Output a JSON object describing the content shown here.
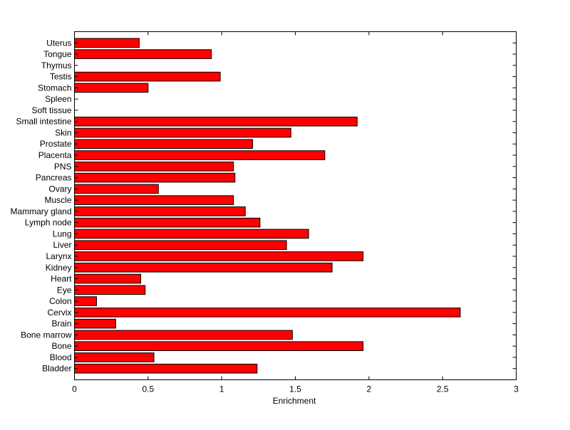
{
  "chart_data": {
    "type": "bar",
    "orientation": "horizontal",
    "title": "",
    "xlabel": "Enrichment",
    "ylabel": "",
    "xlim": [
      0,
      3
    ],
    "xticks": [
      0,
      0.5,
      1,
      1.5,
      2,
      2.5,
      3
    ],
    "xtick_labels": [
      "0",
      "0.5",
      "1",
      "1.5",
      "2",
      "2.5",
      "3"
    ],
    "grid": false,
    "bar_color": "#ff0000",
    "categories": [
      "Bladder",
      "Blood",
      "Bone",
      "Bone marrow",
      "Brain",
      "Cervix",
      "Colon",
      "Eye",
      "Heart",
      "Kidney",
      "Larynx",
      "Liver",
      "Lung",
      "Lymph node",
      "Mammary gland",
      "Muscle",
      "Ovary",
      "Pancreas",
      "PNS",
      "Placenta",
      "Prostate",
      "Skin",
      "Small intestine",
      "Soft tissue",
      "Spleen",
      "Stomach",
      "Testis",
      "Thymus",
      "Tongue",
      "Uterus"
    ],
    "values": [
      1.24,
      0.54,
      1.96,
      1.48,
      0.28,
      2.62,
      0.15,
      0.48,
      0.45,
      1.75,
      1.96,
      1.44,
      1.59,
      1.26,
      1.16,
      1.08,
      0.57,
      1.09,
      1.08,
      1.7,
      1.21,
      1.47,
      1.92,
      0,
      0,
      0.5,
      0.99,
      0,
      0.93,
      0.44
    ]
  }
}
